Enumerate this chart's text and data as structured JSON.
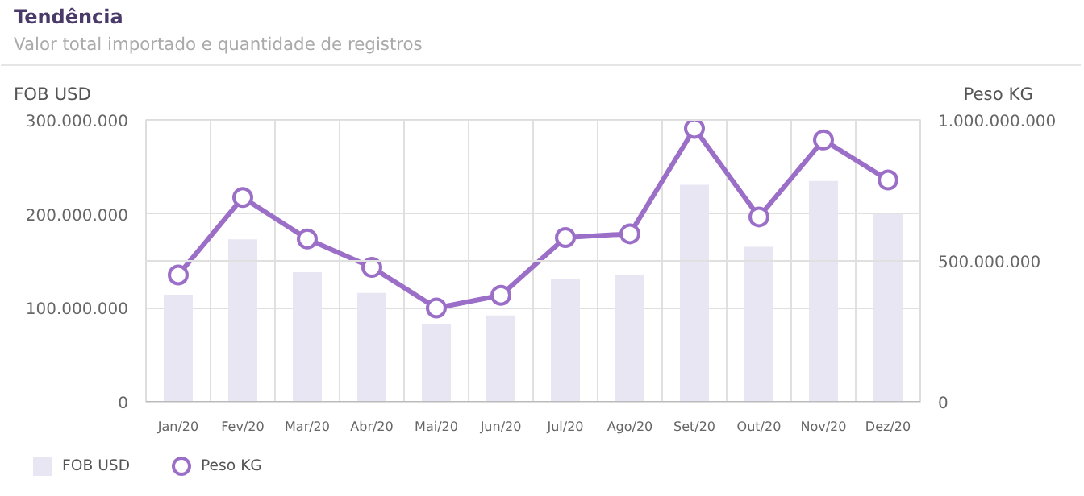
{
  "chart_data": {
    "type": "bar",
    "title": "Tendência",
    "subtitle": "Valor total importado e quantidade de registros",
    "ylabel": "FOB USD",
    "y2label": "Peso KG",
    "categories": [
      "Jan/20",
      "Fev/20",
      "Mar/20",
      "Abr/20",
      "Mai/20",
      "Jun/20",
      "Jul/20",
      "Ago/20",
      "Set/20",
      "Out/20",
      "Nov/20",
      "Dez/20"
    ],
    "series": [
      {
        "name": "FOB USD",
        "color": "#e8e6f3",
        "values": [
          114000000,
          173000000,
          138000000,
          116000000,
          83000000,
          92000000,
          131000000,
          135000000,
          231000000,
          165000000,
          235000000,
          200000000
        ]
      },
      {
        "name": "Peso KG",
        "type": "line",
        "axis": "y2",
        "color": "#9b6fc7",
        "marker": "circle",
        "values": [
          450000000,
          725000000,
          578000000,
          477000000,
          333000000,
          378000000,
          583000000,
          596000000,
          970000000,
          656000000,
          929000000,
          787000000
        ]
      }
    ],
    "ylim": [
      0,
      300000000
    ],
    "yticks": [
      {
        "value": 0,
        "label": "0"
      },
      {
        "value": 100000000,
        "label": "100.000.000"
      },
      {
        "value": 200000000,
        "label": "200.000.000"
      },
      {
        "value": 300000000,
        "label": "300.000.000"
      }
    ],
    "y2lim": [
      0,
      1000000000
    ],
    "y2ticks": [
      {
        "value": 0,
        "label": "0"
      },
      {
        "value": 500000000,
        "label": "500.000.000"
      },
      {
        "value": 1000000000,
        "label": "1.000.000.000"
      }
    ],
    "grid": true,
    "legend": "bottom left"
  }
}
